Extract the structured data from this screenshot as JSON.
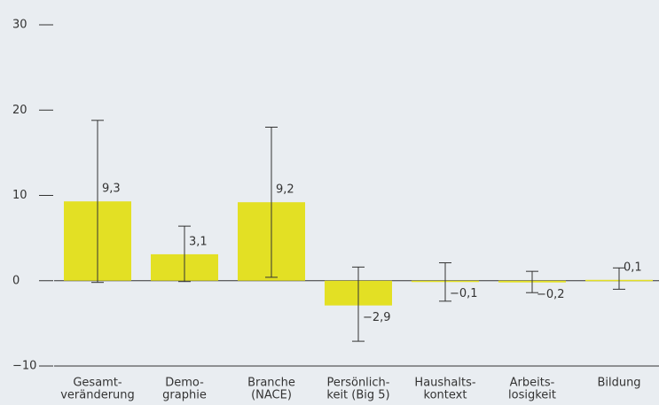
{
  "chart_data": {
    "type": "bar",
    "categories": [
      [
        "Gesamt-",
        "veränderung"
      ],
      [
        "Demo-",
        "graphie"
      ],
      [
        "Branche",
        "(NACE)"
      ],
      [
        "Persönlich-",
        "keit (Big 5)"
      ],
      [
        "Haushalts-",
        "kontext"
      ],
      [
        "Arbeits-",
        "losigkeit"
      ],
      [
        "Bildung"
      ]
    ],
    "values": [
      9.3,
      3.1,
      9.2,
      -2.9,
      -0.1,
      -0.2,
      0.1
    ],
    "value_labels": [
      "9,3",
      "3,1",
      "9,2",
      "−2,9",
      "−0,1",
      "−0,2",
      "0,1"
    ],
    "error_bars": [
      [
        -0.2,
        18.8
      ],
      [
        -0.1,
        6.4
      ],
      [
        0.4,
        18.0
      ],
      [
        -7.1,
        1.6
      ],
      [
        -2.4,
        2.1
      ],
      [
        -1.4,
        1.1
      ],
      [
        -1.0,
        1.5
      ]
    ],
    "color": "#e3e024",
    "ylim": [
      -10,
      30
    ],
    "yticks": [
      {
        "value": -10,
        "label": "−10"
      },
      0,
      10,
      20,
      30
    ]
  }
}
